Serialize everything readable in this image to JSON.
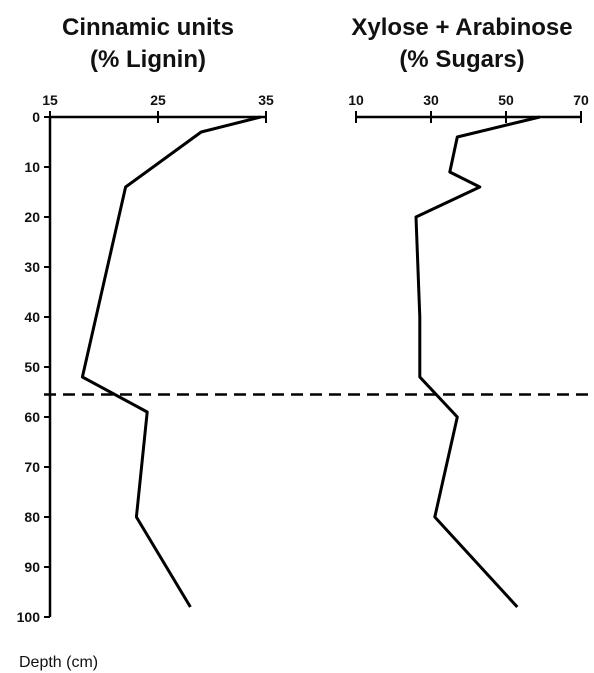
{
  "chart_data": [
    {
      "type": "line",
      "title": [
        "Cinnamic units",
        "(% Lignin)"
      ],
      "xlabel": "",
      "ylabel": "Depth (cm)",
      "xlim": [
        15,
        35
      ],
      "xticks": [
        15,
        25,
        35
      ],
      "ylim": [
        0,
        100
      ],
      "yticks": [
        0,
        10,
        20,
        30,
        40,
        50,
        60,
        70,
        80,
        90,
        100
      ],
      "y_inverted": true,
      "series": [
        {
          "x": [
            34.5,
            29,
            22,
            18,
            24,
            23,
            28
          ],
          "y": [
            0,
            3,
            14,
            52,
            59,
            80,
            98
          ]
        }
      ],
      "reference_line": {
        "orientation": "horizontal",
        "y": 55.5,
        "style": "dashed"
      }
    },
    {
      "type": "line",
      "title": [
        "Xylose + Arabinose",
        "(% Sugars)"
      ],
      "xlabel": "",
      "ylabel": "",
      "xlim": [
        10,
        70
      ],
      "xticks": [
        10,
        30,
        50,
        70
      ],
      "ylim": [
        0,
        100
      ],
      "y_inverted": true,
      "series": [
        {
          "x": [
            59,
            37,
            35,
            43,
            26,
            27,
            27,
            37,
            31,
            53
          ],
          "y": [
            0,
            4,
            11,
            14,
            20,
            40,
            52,
            60,
            80,
            98
          ]
        }
      ]
    }
  ]
}
